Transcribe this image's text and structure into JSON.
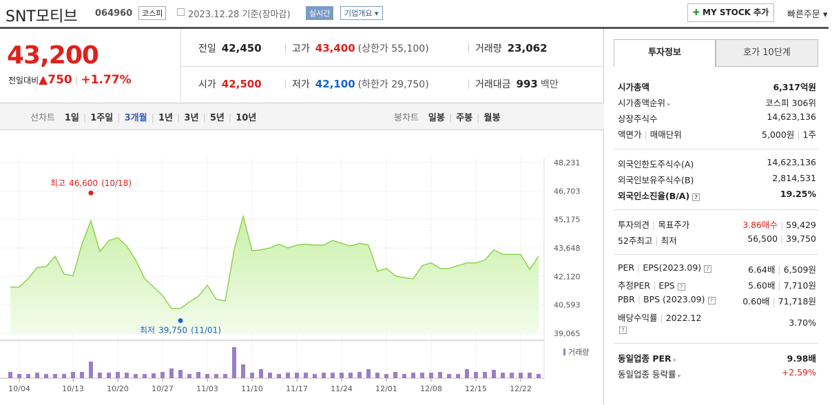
{
  "header": {
    "name": "SNT모티브",
    "code": "064960",
    "market": "코스피",
    "date": "2023.12.28",
    "basis": "기준(장마감)",
    "realtime": "실시간",
    "overview": "기업개요",
    "mystock": "MY STOCK 추가",
    "quick_order": "빠른주문"
  },
  "price": {
    "current": "43,200",
    "change_label": "전일대비",
    "change": "750",
    "rate": "+1.77%"
  },
  "summary": [
    [
      {
        "label": "전일",
        "value": "42,450"
      },
      {
        "label": "고가",
        "value": "43,400",
        "extra": "(상한가 55,100)"
      },
      {
        "label": "거래량",
        "value": "23,062"
      }
    ],
    [
      {
        "label": "시가",
        "value": "42,500"
      },
      {
        "label": "저가",
        "value": "42,100",
        "extra": "(하한가 29,750)"
      },
      {
        "label": "거래대금",
        "value": "993",
        "extra": "백만"
      }
    ]
  ],
  "chart_tabs": {
    "line_label": "선차트",
    "periods": [
      "1일",
      "1주일",
      "3개월",
      "1년",
      "3년",
      "5년",
      "10년"
    ],
    "candle_label": "봉차트",
    "candles": [
      "일봉",
      "주봉",
      "월봉"
    ]
  },
  "chart_data": {
    "type": "line",
    "color": "#8fd14f",
    "values": [
      41550,
      41550,
      42000,
      42600,
      42650,
      43200,
      42250,
      42150,
      43850,
      45100,
      43450,
      44050,
      44200,
      43750,
      43000,
      42000,
      41550,
      41100,
      40400,
      40400,
      40750,
      41050,
      41650,
      40900,
      40800,
      43550,
      45350,
      43500,
      43550,
      43650,
      43850,
      43650,
      43800,
      43850,
      43800,
      43800,
      44050,
      43900,
      43750,
      43900,
      43800,
      42400,
      42550,
      42150,
      42050,
      42000,
      42700,
      42850,
      42550,
      42550,
      42700,
      42850,
      42850,
      43000,
      43550,
      43300,
      43300,
      43300,
      42500,
      43200
    ],
    "volume": [
      34200,
      22800,
      22800,
      30400,
      22800,
      22800,
      22800,
      34200,
      34200,
      91200,
      30400,
      30400,
      34200,
      30400,
      22800,
      22800,
      26600,
      34200,
      53200,
      45600,
      22800,
      34200,
      22800,
      22800,
      22800,
      171000,
      76000,
      30400,
      49400,
      30400,
      22800,
      30400,
      30400,
      30400,
      22800,
      30400,
      30400,
      30400,
      30400,
      34200,
      49400,
      30400,
      22800,
      34200,
      22800,
      30400,
      30400,
      30400,
      34200,
      22800,
      22800,
      49400,
      34200,
      34200,
      45600,
      30400,
      30400,
      30400,
      30400,
      23062
    ],
    "volume_label": "거래량",
    "volume_color": "#9b7fc4",
    "ylim": [
      39065,
      48231
    ],
    "yticks": [
      {
        "value": 48231,
        "label": "48,231"
      },
      {
        "value": 46703,
        "label": "46,703"
      },
      {
        "value": 45175,
        "label": "45,175"
      },
      {
        "value": 43648,
        "label": "43,648"
      },
      {
        "value": 42120,
        "label": "42,120"
      },
      {
        "value": 40593,
        "label": "40,593"
      },
      {
        "value": 39065,
        "label": "39,065"
      }
    ],
    "xticks": [
      {
        "value": 1,
        "label": "10/04"
      },
      {
        "value": 7,
        "label": "10/13"
      },
      {
        "value": 12,
        "label": "10/20"
      },
      {
        "value": 17,
        "label": "10/27"
      },
      {
        "value": 22,
        "label": "11/03"
      },
      {
        "value": 27,
        "label": "11/10"
      },
      {
        "value": 32,
        "label": "11/17"
      },
      {
        "value": 37,
        "label": "11/24"
      },
      {
        "value": 42,
        "label": "12/01"
      },
      {
        "value": 47,
        "label": "12/08"
      },
      {
        "value": 52,
        "label": "12/15"
      },
      {
        "value": 57,
        "label": "12/22"
      }
    ],
    "high": {
      "label": "최고",
      "value": 46600,
      "value_label": "46,600",
      "date": "(10/18)",
      "index": 9
    },
    "low": {
      "label": "최저",
      "value": 39750,
      "value_label": "39,750",
      "date": "(11/01)",
      "index": 19
    }
  },
  "side": {
    "tabs": [
      "투자정보",
      "호가 10단계"
    ],
    "groups": [
      [
        {
          "label": [
            "시가총액"
          ],
          "value": [
            "6,317억원"
          ]
        },
        {
          "label": [
            "시가총액순위"
          ],
          "value": [
            "코스피 306위"
          ]
        },
        {
          "label": [
            "상장주식수"
          ],
          "value": [
            "14,623,136"
          ]
        },
        {
          "label": [
            "액면가",
            "매매단위"
          ],
          "value": [
            "5,000원",
            "1주"
          ]
        }
      ],
      [
        {
          "label": [
            "외국인한도주식수(A)"
          ],
          "value": [
            "14,623,136"
          ]
        },
        {
          "label": [
            "외국인보유주식수(B)"
          ],
          "value": [
            "2,814,531"
          ]
        },
        {
          "label": [
            "외국인소진율(B/A)"
          ],
          "value": [
            "19.25%"
          ]
        }
      ],
      [
        {
          "label": [
            "투자의견",
            "목표주가"
          ],
          "value": [
            "3.86매수",
            "59,429"
          ]
        },
        {
          "label": [
            "52주최고",
            "최저"
          ],
          "value": [
            "56,500",
            "39,750"
          ]
        }
      ],
      [
        {
          "label": [
            "PER",
            "EPS(2023.09)"
          ],
          "value": [
            "6.64배",
            "6,509원"
          ]
        },
        {
          "label": [
            "추정PER",
            "EPS"
          ],
          "value": [
            "5.60배",
            "7,710원"
          ]
        },
        {
          "label": [
            "PBR",
            "BPS (2023.09)"
          ],
          "value": [
            "0.60배",
            "71,718원"
          ]
        },
        {
          "label": [
            "배당수익률",
            "2022.12"
          ],
          "value": [
            "3.70%"
          ]
        }
      ],
      [
        {
          "label": [
            "동일업종 PER"
          ],
          "value": [
            "9.98배"
          ]
        },
        {
          "label": [
            "동일업종 등락률"
          ],
          "value": [
            "+2.59%"
          ]
        }
      ]
    ]
  }
}
